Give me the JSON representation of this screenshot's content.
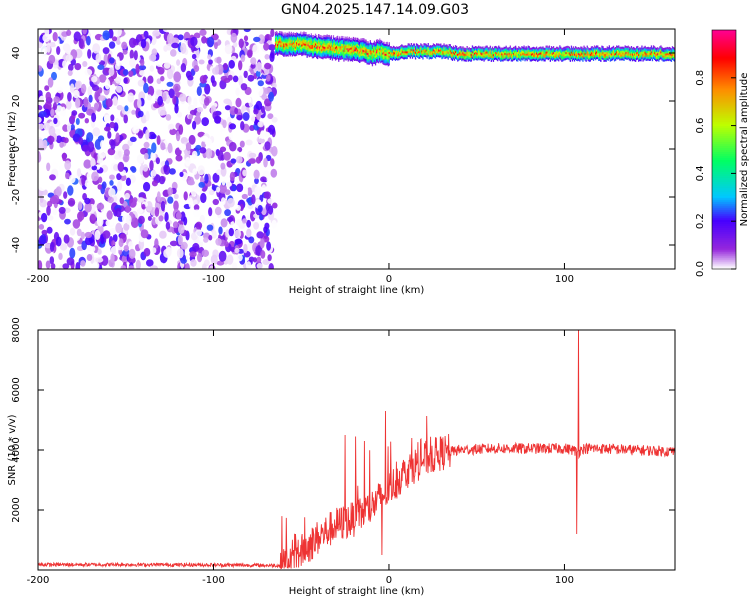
{
  "title": "GN04.2025.147.14.09.G03",
  "chart_data": [
    {
      "type": "heatmap",
      "xlabel": "Height of straight line (km)",
      "ylabel": "Frequency (Hz)",
      "xlim": [
        -200,
        163
      ],
      "ylim": [
        -50,
        50
      ],
      "xticks": [
        -200,
        -100,
        0,
        100
      ],
      "yticks": [
        -40,
        -20,
        0,
        20,
        40
      ],
      "colorbar": {
        "label": "Normalized spectral amplitude",
        "range": [
          0,
          1
        ],
        "ticks": [
          "0.0",
          "0.2",
          "0.4",
          "0.6",
          "0.8"
        ]
      },
      "regions": [
        {
          "x": [
            -200,
            -65
          ],
          "y": [
            -50,
            50
          ],
          "amplitude": [
            0.0,
            0.25
          ]
        },
        {
          "x": [
            -65,
            163
          ],
          "y": [
            38,
            46
          ],
          "amplitude": [
            0.2,
            1.0
          ]
        }
      ],
      "ridge": {
        "x": [
          -65,
          -50,
          -40,
          -30,
          -20,
          -10,
          -5,
          0,
          10,
          20,
          30,
          40,
          60,
          80,
          100,
          120,
          140,
          160
        ],
        "frequency": [
          44,
          44,
          43,
          42,
          42,
          40,
          41,
          40,
          41,
          41,
          41,
          40,
          40,
          40,
          40,
          40,
          40,
          40
        ]
      }
    },
    {
      "type": "line",
      "xlabel": "Height of straight line (km)",
      "ylabel": "SNR (10 * v/v)",
      "xlim": [
        -200,
        163
      ],
      "ylim": [
        0,
        8000
      ],
      "xticks": [
        -200,
        -100,
        0,
        100
      ],
      "yticks": [
        2000,
        4000,
        6000,
        8000
      ],
      "series": [
        {
          "color": "#ee3333",
          "x": [
            -200,
            -150,
            -100,
            -62,
            -50,
            -40,
            -30,
            -20,
            -10,
            0,
            10,
            20,
            30,
            40,
            60,
            80,
            100,
            105,
            108,
            110,
            120,
            140,
            163
          ],
          "y": [
            180,
            180,
            170,
            150,
            600,
            1100,
            1500,
            1700,
            2100,
            2700,
            3300,
            3700,
            3900,
            4000,
            4050,
            4050,
            4050,
            4000,
            3900,
            4050,
            4050,
            4000,
            3950
          ]
        }
      ],
      "spikes": [
        {
          "x": 108,
          "y": 8200
        },
        {
          "x": 107,
          "y": 1200
        },
        {
          "x": -25,
          "y": 4500
        },
        {
          "x": -19,
          "y": 4450
        },
        {
          "x": -2,
          "y": 5300
        },
        {
          "x": -14,
          "y": 4300
        },
        {
          "x": -4,
          "y": 500
        },
        {
          "x": 13,
          "y": 4400
        }
      ]
    }
  ]
}
